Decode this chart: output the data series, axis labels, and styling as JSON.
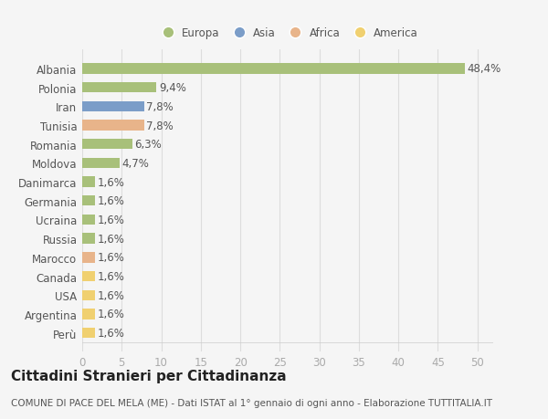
{
  "categories": [
    "Albania",
    "Polonia",
    "Iran",
    "Tunisia",
    "Romania",
    "Moldova",
    "Danimarca",
    "Germania",
    "Ucraina",
    "Russia",
    "Marocco",
    "Canada",
    "USA",
    "Argentina",
    "Perù"
  ],
  "values": [
    48.4,
    9.4,
    7.8,
    7.8,
    6.3,
    4.7,
    1.6,
    1.6,
    1.6,
    1.6,
    1.6,
    1.6,
    1.6,
    1.6,
    1.6
  ],
  "labels": [
    "48,4%",
    "9,4%",
    "7,8%",
    "7,8%",
    "6,3%",
    "4,7%",
    "1,6%",
    "1,6%",
    "1,6%",
    "1,6%",
    "1,6%",
    "1,6%",
    "1,6%",
    "1,6%",
    "1,6%"
  ],
  "bar_colors": [
    "#a8c07a",
    "#a8c07a",
    "#7b9dc8",
    "#e8b48a",
    "#a8c07a",
    "#a8c07a",
    "#a8c07a",
    "#a8c07a",
    "#a8c07a",
    "#a8c07a",
    "#e8b48a",
    "#f0d070",
    "#f0d070",
    "#f0d070",
    "#f0d070"
  ],
  "legend_labels": [
    "Europa",
    "Asia",
    "Africa",
    "America"
  ],
  "legend_colors": [
    "#a8c07a",
    "#7b9dc8",
    "#e8b48a",
    "#f0d070"
  ],
  "xlim": [
    0,
    52
  ],
  "xticks": [
    0,
    5,
    10,
    15,
    20,
    25,
    30,
    35,
    40,
    45,
    50
  ],
  "title": "Cittadini Stranieri per Cittadinanza",
  "subtitle": "COMUNE DI PACE DEL MELA (ME) - Dati ISTAT al 1° gennaio di ogni anno - Elaborazione TUTTITALIA.IT",
  "background_color": "#f5f5f5",
  "plot_bg_color": "#f5f5f5",
  "grid_color": "#dddddd",
  "bar_height": 0.55,
  "label_fontsize": 8.5,
  "tick_fontsize": 8.5,
  "title_fontsize": 11,
  "subtitle_fontsize": 7.5
}
